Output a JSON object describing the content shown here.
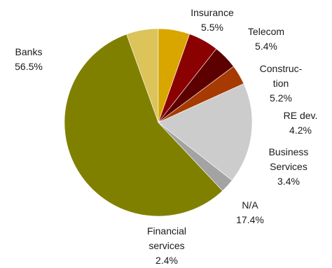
{
  "chart_data": {
    "type": "pie",
    "title": "",
    "start_angle_deg": -90,
    "direction": "counterclockwise",
    "slices": [
      {
        "name": "Insurance",
        "label_lines": [
          "Insurance",
          "5.5%"
        ],
        "percent_text": "5.5%",
        "value": 5.5,
        "color": "#DCC35A"
      },
      {
        "name": "Banks",
        "label_lines": [
          "Banks",
          "56.5%"
        ],
        "percent_text": "56.5%",
        "value": 56.5,
        "color": "#808000"
      },
      {
        "name": "Financial services",
        "label_lines": [
          "Financial",
          "services",
          "2.4%"
        ],
        "percent_text": "2.4%",
        "value": 2.4,
        "color": "#A3A3A3"
      },
      {
        "name": "N/A",
        "label_lines": [
          "N/A",
          "17.4%"
        ],
        "percent_text": "17.4%",
        "value": 17.4,
        "color": "#CCCCCC"
      },
      {
        "name": "Business Services",
        "label_lines": [
          "Business",
          "Services",
          "3.4%"
        ],
        "percent_text": "3.4%",
        "value": 3.4,
        "color": "#A63A00"
      },
      {
        "name": "RE dev.",
        "label_lines": [
          "RE dev.",
          "4.2%"
        ],
        "percent_text": "4.2%",
        "value": 4.2,
        "color": "#5C0000"
      },
      {
        "name": "Construction",
        "label_lines": [
          "Construc-",
          "tion",
          "5.2%"
        ],
        "percent_text": "5.2%",
        "value": 5.2,
        "color": "#8B0000"
      },
      {
        "name": "Telecom",
        "label_lines": [
          "Telecom",
          "5.4%"
        ],
        "percent_text": "5.4%",
        "value": 5.4,
        "color": "#D9A600"
      }
    ]
  }
}
